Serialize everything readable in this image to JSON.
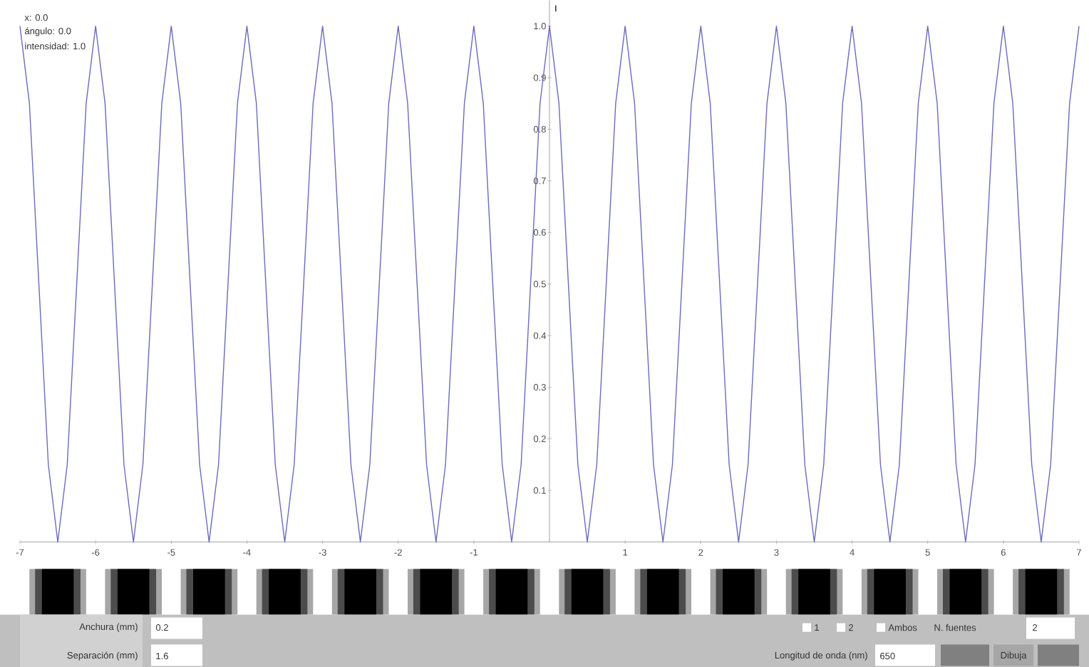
{
  "chart_data": {
    "type": "line",
    "ylabel": "I",
    "x": [
      -7,
      -6.875,
      -6.75,
      -6.625,
      -6.5,
      -6.375,
      -6.25,
      -6.125,
      -6,
      -5.875,
      -5.75,
      -5.625,
      -5.5,
      -5.375,
      -5.25,
      -5.125,
      -5,
      -4.875,
      -4.75,
      -4.625,
      -4.5,
      -4.375,
      -4.25,
      -4.125,
      -4,
      -3.875,
      -3.75,
      -3.625,
      -3.5,
      -3.375,
      -3.25,
      -3.125,
      -3,
      -2.875,
      -2.75,
      -2.625,
      -2.5,
      -2.375,
      -2.25,
      -2.125,
      -2,
      -1.875,
      -1.75,
      -1.625,
      -1.5,
      -1.375,
      -1.25,
      -1.125,
      -1,
      -0.875,
      -0.75,
      -0.625,
      -0.5,
      -0.375,
      -0.25,
      -0.125,
      0,
      0.125,
      0.25,
      0.375,
      0.5,
      0.625,
      0.75,
      0.875,
      1,
      1.125,
      1.25,
      1.375,
      1.5,
      1.625,
      1.75,
      1.875,
      2,
      2.125,
      2.25,
      2.375,
      2.5,
      2.625,
      2.75,
      2.875,
      3,
      3.125,
      3.25,
      3.375,
      3.5,
      3.625,
      3.75,
      3.875,
      4,
      4.125,
      4.25,
      4.375,
      4.5,
      4.625,
      4.75,
      4.875,
      5,
      5.125,
      5.25,
      5.375,
      5.5,
      5.625,
      5.75,
      5.875,
      6,
      6.125,
      6.25,
      6.375,
      6.5,
      6.625,
      6.75,
      6.875,
      7
    ],
    "series": [
      {
        "color": "#6b6bbf",
        "values": [
          1,
          0.85,
          0.5,
          0.15,
          0,
          0.15,
          0.5,
          0.85,
          1,
          0.85,
          0.5,
          0.15,
          0,
          0.15,
          0.5,
          0.85,
          1,
          0.85,
          0.5,
          0.15,
          0,
          0.15,
          0.5,
          0.85,
          1,
          0.85,
          0.5,
          0.15,
          0,
          0.15,
          0.5,
          0.85,
          1,
          0.85,
          0.5,
          0.15,
          0,
          0.15,
          0.5,
          0.85,
          1,
          0.85,
          0.5,
          0.15,
          0,
          0.15,
          0.5,
          0.85,
          1,
          0.85,
          0.5,
          0.15,
          0,
          0.15,
          0.5,
          0.85,
          1,
          0.85,
          0.5,
          0.15,
          0,
          0.15,
          0.5,
          0.85,
          1,
          0.85,
          0.5,
          0.15,
          0,
          0.15,
          0.5,
          0.85,
          1,
          0.85,
          0.5,
          0.15,
          0,
          0.15,
          0.5,
          0.85,
          1,
          0.85,
          0.5,
          0.15,
          0,
          0.15,
          0.5,
          0.85,
          1,
          0.85,
          0.5,
          0.15,
          0,
          0.15,
          0.5,
          0.85,
          1,
          0.85,
          0.5,
          0.15,
          0,
          0.15,
          0.5,
          0.85,
          1,
          0.85,
          0.5,
          0.15,
          0,
          0.15,
          0.5,
          0.85,
          1
        ]
      }
    ],
    "xlim": [
      -7,
      7
    ],
    "xticks": [
      -7,
      -6,
      -5,
      -4,
      -3,
      -2,
      -1,
      {
        "value": 0,
        "label": null
      },
      1,
      2,
      3,
      4,
      5,
      6,
      7
    ],
    "ylim": [
      0,
      1.05
    ],
    "yticks": [
      0.1,
      0.2,
      0.3,
      0.4,
      0.5,
      0.6,
      0.7,
      0.8,
      0.9,
      {
        "value": 1.0,
        "label": "1.0"
      }
    ],
    "annotations": [
      "x: 0.0",
      "ángulo: 0.0",
      "intensidad: 1.0",
      "Anchura (mm)",
      "0.2",
      "Separación (mm)",
      "1.6",
      "1",
      "2",
      "Ambos",
      "N. fuentes",
      "2",
      "Longitud de onda (nm)",
      "650",
      "Dibuja"
    ]
  }
}
